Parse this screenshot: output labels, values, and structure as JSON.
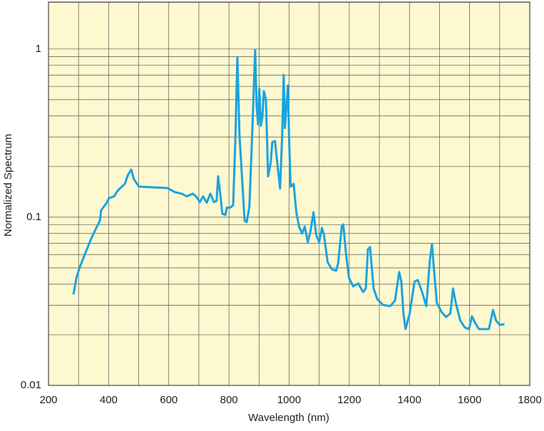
{
  "chart_data": {
    "type": "line",
    "xlabel": "Wavelength (nm)",
    "ylabel": "Normalized Spectrum",
    "x": [
      283,
      293,
      304,
      323,
      342,
      361,
      371,
      375,
      394,
      401,
      418,
      430,
      454,
      465,
      475,
      484,
      501,
      596,
      620,
      643,
      660,
      679,
      691,
      703,
      714,
      726,
      738,
      750,
      759,
      764,
      771,
      778,
      788,
      793,
      804,
      814,
      821,
      828,
      835,
      845,
      852,
      859,
      868,
      878,
      887,
      892,
      897,
      901,
      906,
      911,
      916,
      923,
      930,
      939,
      944,
      953,
      963,
      970,
      977,
      982,
      986,
      996,
      1000,
      1005,
      1015,
      1024,
      1033,
      1043,
      1052,
      1062,
      1071,
      1081,
      1090,
      1100,
      1109,
      1116,
      1128,
      1142,
      1156,
      1163,
      1175,
      1180,
      1189,
      1199,
      1213,
      1230,
      1246,
      1255,
      1262,
      1269,
      1281,
      1293,
      1312,
      1336,
      1352,
      1366,
      1373,
      1380,
      1387,
      1401,
      1417,
      1428,
      1442,
      1456,
      1468,
      1475,
      1481,
      1491,
      1507,
      1522,
      1536,
      1545,
      1554,
      1569,
      1584,
      1598,
      1608,
      1617,
      1631,
      1664,
      1678,
      1688,
      1700,
      1716
    ],
    "series": [
      {
        "name": "Normalized Spectrum",
        "color": "#1aa3e0",
        "values": [
          0.0348,
          0.0436,
          0.0505,
          0.0614,
          0.0746,
          0.0881,
          0.0953,
          0.11,
          0.122,
          0.13,
          0.133,
          0.144,
          0.158,
          0.18,
          0.192,
          0.168,
          0.152,
          0.149,
          0.141,
          0.138,
          0.133,
          0.138,
          0.133,
          0.123,
          0.133,
          0.122,
          0.138,
          0.123,
          0.125,
          0.175,
          0.138,
          0.105,
          0.103,
          0.114,
          0.114,
          0.118,
          0.279,
          0.897,
          0.307,
          0.155,
          0.0953,
          0.0935,
          0.116,
          0.339,
          0.99,
          0.454,
          0.356,
          0.58,
          0.35,
          0.392,
          0.563,
          0.5,
          0.175,
          0.212,
          0.279,
          0.284,
          0.192,
          0.148,
          0.307,
          0.703,
          0.339,
          0.608,
          0.292,
          0.152,
          0.158,
          0.107,
          0.0881,
          0.08,
          0.088,
          0.0711,
          0.0822,
          0.107,
          0.0784,
          0.0711,
          0.0864,
          0.0784,
          0.0541,
          0.0491,
          0.0481,
          0.053,
          0.0881,
          0.0907,
          0.0614,
          0.0436,
          0.0388,
          0.0404,
          0.0359,
          0.0377,
          0.0644,
          0.0664,
          0.0377,
          0.0326,
          0.0301,
          0.0296,
          0.0319,
          0.0472,
          0.0415,
          0.0268,
          0.0216,
          0.0268,
          0.0415,
          0.0423,
          0.0359,
          0.0296,
          0.0557,
          0.069,
          0.0505,
          0.031,
          0.0273,
          0.0255,
          0.0268,
          0.0377,
          0.031,
          0.0243,
          0.0221,
          0.0216,
          0.0258,
          0.0238,
          0.0216,
          0.0216,
          0.0281,
          0.0243,
          0.0229,
          0.0231
        ]
      }
    ],
    "xlim": [
      200,
      1800
    ],
    "xticks": [
      200,
      400,
      600,
      800,
      1000,
      1200,
      1400,
      1600,
      1800
    ],
    "xminorticks": [
      300,
      500,
      700,
      900,
      1100,
      1300,
      1500,
      1700
    ],
    "ylim": [
      0.01,
      1.9
    ],
    "yticks": [
      0.01,
      0.1,
      1
    ],
    "yminorticks": [
      0.02,
      0.03,
      0.04,
      0.05,
      0.06,
      0.07,
      0.08,
      0.09,
      0.2,
      0.3,
      0.4,
      0.5,
      0.6,
      0.7,
      0.8,
      0.9
    ],
    "ylog": true,
    "grid": true,
    "background": "#fdf8cf"
  }
}
